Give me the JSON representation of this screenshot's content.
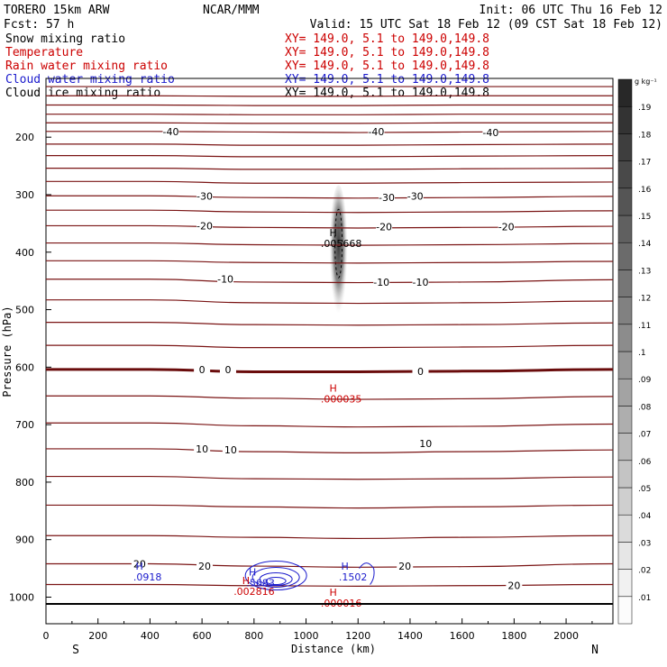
{
  "header": {
    "model": "TORERO  15km ARW",
    "center": "NCAR/MMM",
    "init": "Init: 06 UTC Thu 16 Feb 12",
    "fcst": "Fcst:    57 h",
    "valid": "Valid: 15 UTC Sat 18 Feb 12 (09 CST Sat 18 Feb 12)"
  },
  "legend": [
    {
      "name": "Snow mixing ratio",
      "xy": "XY= 149.0,  5.1 to 149.0,149.8",
      "color": "#000000",
      "xy_color": "#cc0000"
    },
    {
      "name": "Temperature",
      "xy": "XY= 149.0,  5.1 to 149.0,149.8",
      "color": "#cc0000",
      "xy_color": "#cc0000"
    },
    {
      "name": "Rain water mixing ratio",
      "xy": "XY= 149.0,  5.1 to 149.0,149.8",
      "color": "#cc0000",
      "xy_color": "#cc0000"
    },
    {
      "name": "Cloud water mixing ratio",
      "xy": "XY= 149.0,  5.1 to 149.0,149.8",
      "color": "#1a1acc",
      "xy_color": "#1a1acc"
    },
    {
      "name": "Cloud ice mixing ratio",
      "xy": "XY= 149.0,  5.1 to 149.0,149.8",
      "color": "#000000",
      "xy_color": "#000000"
    }
  ],
  "colors": {
    "temperature": "#7a1414",
    "zero_line": "#6a0c0c",
    "rain": "#cc0000",
    "cloud_water": "#1a1acc",
    "axis": "#000000"
  },
  "chart_data": {
    "type": "cross-section",
    "xlabel": "Distance (km)",
    "ylabel": "Pressure (hPa)",
    "xlim": [
      0,
      2180
    ],
    "ylim": [
      1012,
      100
    ],
    "x_ticks": [
      0,
      200,
      400,
      600,
      800,
      1000,
      1200,
      1400,
      1600,
      1800,
      2000
    ],
    "y_ticks": [
      200,
      300,
      400,
      500,
      600,
      700,
      800,
      900,
      1000
    ],
    "x_start_label": "S",
    "x_end_label": "N",
    "colorbar": {
      "unit": "g kg⁻¹",
      "levels": [
        ".01",
        ".02",
        ".03",
        ".04",
        ".05",
        ".06",
        ".07",
        ".08",
        ".09",
        ".1",
        ".11",
        ".12",
        ".13",
        ".14",
        ".15",
        ".16",
        ".17",
        ".18",
        ".19"
      ]
    },
    "temperature_isotherms": [
      {
        "p": [
          112,
          112,
          112,
          112,
          112,
          112
        ]
      },
      {
        "p": [
          128,
          128,
          129,
          129,
          128,
          128
        ]
      },
      {
        "p": [
          144,
          144,
          145,
          145,
          144,
          144
        ]
      },
      {
        "p": [
          160,
          160,
          161,
          161,
          160,
          160
        ]
      },
      {
        "p": [
          175,
          175,
          176,
          176,
          175,
          175
        ]
      },
      {
        "p": [
          190,
          190,
          191,
          192,
          191,
          190
        ],
        "label": "-40"
      },
      {
        "p": [
          212,
          212,
          214,
          214,
          213,
          212
        ]
      },
      {
        "p": [
          232,
          232,
          234,
          234,
          233,
          232
        ]
      },
      {
        "p": [
          254,
          254,
          256,
          256,
          255,
          254
        ]
      },
      {
        "p": [
          277,
          277,
          280,
          280,
          279,
          278
        ]
      },
      {
        "p": [
          302,
          302,
          305,
          306,
          305,
          303
        ],
        "label": "-30"
      },
      {
        "p": [
          327,
          327,
          330,
          331,
          330,
          328
        ]
      },
      {
        "p": [
          354,
          354,
          357,
          358,
          357,
          355
        ],
        "label": "-20"
      },
      {
        "p": [
          384,
          384,
          387,
          388,
          387,
          385
        ]
      },
      {
        "p": [
          415,
          415,
          418,
          419,
          418,
          416
        ]
      },
      {
        "p": [
          447,
          447,
          452,
          453,
          452,
          448
        ],
        "label": "-10"
      },
      {
        "p": [
          483,
          483,
          488,
          489,
          488,
          485
        ]
      },
      {
        "p": [
          522,
          522,
          526,
          527,
          526,
          523
        ]
      },
      {
        "p": [
          562,
          562,
          566,
          566,
          565,
          562
        ]
      },
      {
        "p": [
          604,
          604,
          608,
          608,
          607,
          604
        ],
        "label": "0",
        "bold": true
      },
      {
        "p": [
          650,
          650,
          654,
          656,
          655,
          651
        ]
      },
      {
        "p": [
          697,
          697,
          702,
          704,
          703,
          699
        ]
      },
      {
        "p": [
          742,
          742,
          747,
          749,
          747,
          744
        ],
        "label": "10"
      },
      {
        "p": [
          790,
          790,
          794,
          795,
          794,
          791
        ]
      },
      {
        "p": [
          840,
          840,
          843,
          845,
          843,
          840
        ]
      },
      {
        "p": [
          893,
          893,
          896,
          898,
          896,
          893
        ]
      },
      {
        "p": [
          942,
          942,
          946,
          948,
          947,
          942
        ],
        "label": "20"
      },
      {
        "p": [
          978,
          978,
          980,
          981,
          980,
          978
        ]
      }
    ],
    "isotherm_x": [
      0,
      400,
      800,
      1200,
      1600,
      2180
    ],
    "temperature_labels": [
      {
        "x": 480,
        "p": 190,
        "text": "-40"
      },
      {
        "x": 1270,
        "p": 190,
        "text": "-40"
      },
      {
        "x": 1710,
        "p": 192,
        "text": "-40"
      },
      {
        "x": 610,
        "p": 302,
        "text": "-30"
      },
      {
        "x": 1310,
        "p": 305,
        "text": "-30"
      },
      {
        "x": 1420,
        "p": 302,
        "text": "-30"
      },
      {
        "x": 610,
        "p": 354,
        "text": "-20"
      },
      {
        "x": 1300,
        "p": 356,
        "text": "-20"
      },
      {
        "x": 1770,
        "p": 356,
        "text": "-20"
      },
      {
        "x": 690,
        "p": 447,
        "text": "-10"
      },
      {
        "x": 1290,
        "p": 452,
        "text": "-10"
      },
      {
        "x": 1440,
        "p": 452,
        "text": "-10"
      },
      {
        "x": 600,
        "p": 604,
        "text": "0"
      },
      {
        "x": 700,
        "p": 604,
        "text": "0"
      },
      {
        "x": 1440,
        "p": 607,
        "text": "0"
      },
      {
        "x": 600,
        "p": 742,
        "text": "10"
      },
      {
        "x": 710,
        "p": 744,
        "text": "10"
      },
      {
        "x": 1460,
        "p": 733,
        "text": "10"
      },
      {
        "x": 360,
        "p": 942,
        "text": "20"
      },
      {
        "x": 610,
        "p": 946,
        "text": "20"
      },
      {
        "x": 1380,
        "p": 946,
        "text": "20"
      },
      {
        "x": 1800,
        "p": 980,
        "text": "20"
      }
    ],
    "snow_maximum": {
      "x": 1125,
      "p": 385,
      "label": "H",
      "value": ".005668"
    },
    "rain_maxima": [
      {
        "x": 1125,
        "p": 655,
        "label": "H",
        "value": ".000035"
      },
      {
        "x": 790,
        "p": 990,
        "label": "H",
        "value": ".002816"
      },
      {
        "x": 1125,
        "p": 1010,
        "label": "H",
        "value": ".000016"
      }
    ],
    "cloud_water_maxima": [
      {
        "x": 380,
        "p": 965,
        "label": "H",
        "value": ".0918"
      },
      {
        "x": 815,
        "p": 975,
        "label": "H",
        "value": ".5683"
      },
      {
        "x": 1170,
        "p": 965,
        "label": "H",
        "value": ".1502"
      }
    ]
  }
}
